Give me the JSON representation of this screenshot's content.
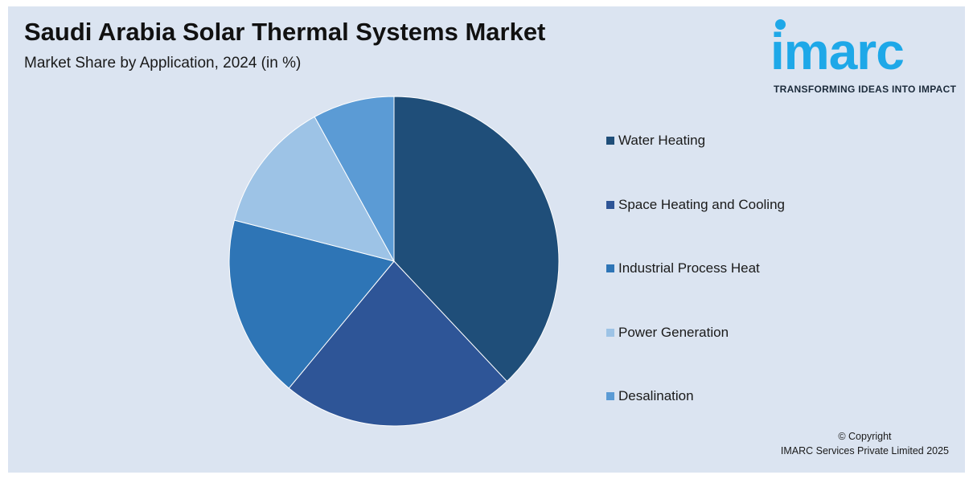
{
  "title": "Saudi Arabia Solar Thermal Systems Market",
  "subtitle": "Market Share by Application, 2024 (in %)",
  "logo": {
    "word": "imarc",
    "tagline": "TRANSFORMING IDEAS INTO IMPACT",
    "color": "#1ea8e8"
  },
  "chart_data": {
    "type": "pie",
    "title": "Saudi Arabia Solar Thermal Systems Market",
    "subtitle": "Market Share by Application, 2024 (in %)",
    "start_angle": "12 o'clock, clockwise",
    "legend_placement": "right",
    "series": [
      {
        "name": "Water Heating",
        "value": 38,
        "color": "#1f4e79"
      },
      {
        "name": "Space Heating and Cooling",
        "value": 23,
        "color": "#2e5597"
      },
      {
        "name": "Industrial Process Heat",
        "value": 18,
        "color": "#2e75b6"
      },
      {
        "name": "Power Generation",
        "value": 13,
        "color": "#9dc3e6"
      },
      {
        "name": "Desalination",
        "value": 8,
        "color": "#5b9bd5"
      }
    ]
  },
  "copyright": {
    "line1": "© Copyright",
    "line2": "IMARC Services Private Limited 2025"
  }
}
